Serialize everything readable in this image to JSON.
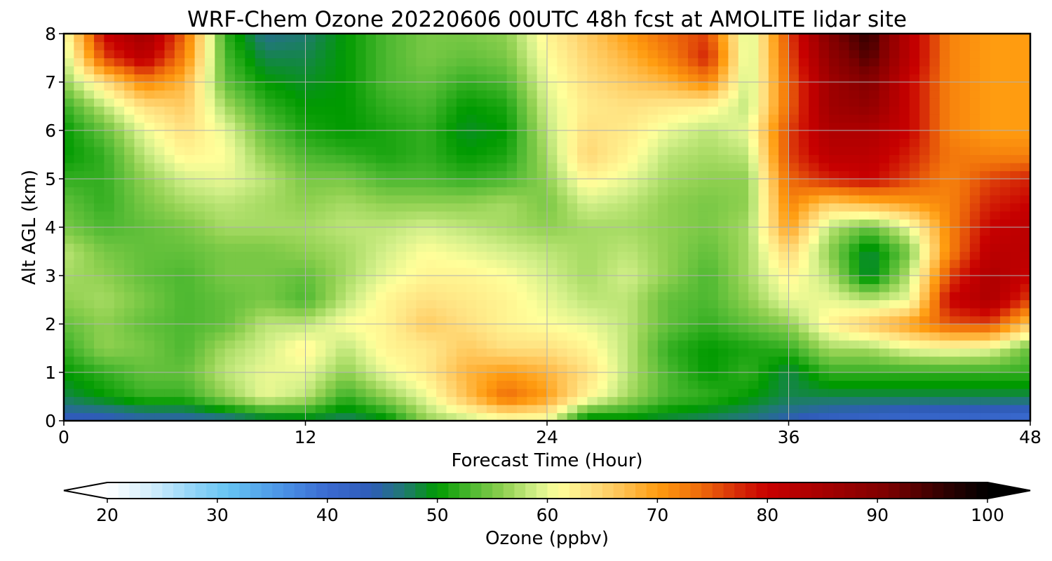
{
  "chart_data": {
    "type": "heatmap",
    "title": "WRF-Chem Ozone  20220606 00UTC 48h fcst at AMOLITE lidar site",
    "xlabel": "Forecast Time (Hour)",
    "ylabel": "Alt AGL (km)",
    "xlim": [
      0,
      48
    ],
    "ylim": [
      0,
      8
    ],
    "x_ticks": [
      "0",
      "12",
      "24",
      "36",
      "48"
    ],
    "y_ticks": [
      "0",
      "1",
      "2",
      "3",
      "4",
      "5",
      "6",
      "7",
      "8"
    ],
    "grid": true,
    "x_hours": [
      0,
      2,
      4,
      6,
      8,
      10,
      12,
      14,
      16,
      18,
      20,
      22,
      24,
      26,
      28,
      30,
      32,
      34,
      36,
      38,
      40,
      42,
      44,
      46,
      48
    ],
    "y_km": [
      0,
      0.5,
      1,
      1.5,
      2,
      2.5,
      3,
      3.5,
      4,
      4.5,
      5,
      5.5,
      6,
      6.5,
      7,
      7.5,
      8
    ],
    "ozone_ppbv": [
      [
        43,
        43,
        44,
        44,
        45,
        47,
        48,
        47,
        49,
        56,
        58,
        60,
        60,
        48,
        49,
        48,
        47,
        46,
        44,
        42,
        41,
        40,
        40,
        40,
        39
      ],
      [
        48,
        50,
        52,
        52,
        56,
        60,
        58,
        52,
        56,
        60,
        67,
        74,
        70,
        62,
        57,
        53,
        52,
        50,
        48,
        48,
        48,
        48,
        48,
        48,
        48
      ],
      [
        50,
        52,
        54,
        54,
        58,
        60,
        60,
        56,
        60,
        63,
        68,
        70,
        68,
        64,
        58,
        53,
        50,
        52,
        48,
        52,
        52,
        52,
        52,
        52,
        52
      ],
      [
        52,
        56,
        55,
        53,
        57,
        59,
        62,
        58,
        62,
        63,
        66,
        64,
        64,
        62,
        58,
        52,
        50,
        51,
        52,
        57,
        57,
        60,
        61,
        60,
        54
      ],
      [
        54,
        56,
        54,
        53,
        54,
        58,
        58,
        61,
        62,
        66,
        64,
        62,
        61,
        60,
        58,
        54,
        52,
        54,
        56,
        62,
        66,
        70,
        75,
        76,
        66
      ],
      [
        56,
        57,
        55,
        53,
        54,
        55,
        53,
        58,
        62,
        64,
        63,
        62,
        60,
        58,
        58,
        54,
        53,
        56,
        60,
        60,
        58,
        60,
        80,
        84,
        76
      ],
      [
        57,
        56,
        54,
        53,
        55,
        55,
        54,
        57,
        60,
        62,
        62,
        61,
        59,
        57,
        59,
        56,
        53,
        57,
        62,
        58,
        48,
        58,
        76,
        84,
        80
      ],
      [
        58,
        55,
        54,
        54,
        55,
        55,
        56,
        57,
        59,
        61,
        60,
        59,
        58,
        57,
        58,
        56,
        54,
        57,
        65,
        56,
        48,
        55,
        72,
        82,
        82
      ],
      [
        55,
        53,
        54,
        55,
        57,
        57,
        57,
        58,
        58,
        59,
        58,
        57,
        56,
        57,
        57,
        56,
        55,
        57,
        70,
        58,
        54,
        60,
        72,
        80,
        82
      ],
      [
        54,
        52,
        55,
        57,
        58,
        57,
        56,
        57,
        56,
        56,
        56,
        57,
        55,
        59,
        58,
        56,
        55,
        56,
        72,
        66,
        68,
        70,
        72,
        78,
        80
      ],
      [
        52,
        52,
        56,
        59,
        60,
        58,
        55,
        55,
        53,
        53,
        52,
        53,
        56,
        62,
        60,
        57,
        56,
        56,
        74,
        78,
        80,
        76,
        72,
        76,
        78
      ],
      [
        50,
        52,
        58,
        62,
        61,
        56,
        53,
        52,
        51,
        52,
        50,
        51,
        57,
        65,
        62,
        58,
        57,
        58,
        76,
        82,
        82,
        78,
        73,
        72,
        72
      ],
      [
        50,
        54,
        60,
        64,
        60,
        54,
        51,
        50,
        51,
        52,
        49,
        50,
        58,
        64,
        63,
        60,
        58,
        60,
        76,
        84,
        84,
        80,
        72,
        70,
        70
      ],
      [
        52,
        58,
        64,
        66,
        57,
        52,
        50,
        50,
        52,
        53,
        50,
        51,
        59,
        63,
        64,
        63,
        62,
        58,
        74,
        86,
        88,
        80,
        72,
        70,
        70
      ],
      [
        56,
        64,
        72,
        68,
        54,
        50,
        49,
        50,
        53,
        54,
        52,
        53,
        60,
        64,
        66,
        68,
        72,
        58,
        74,
        86,
        90,
        80,
        72,
        70,
        70
      ],
      [
        58,
        76,
        82,
        72,
        53,
        48,
        48,
        50,
        53,
        55,
        54,
        55,
        61,
        65,
        68,
        72,
        78,
        58,
        75,
        88,
        94,
        82,
        72,
        70,
        70
      ],
      [
        60,
        80,
        86,
        74,
        52,
        46,
        47,
        50,
        53,
        55,
        55,
        56,
        62,
        66,
        70,
        74,
        76,
        58,
        76,
        90,
        96,
        82,
        72,
        70,
        70
      ]
    ],
    "colorbar": {
      "label": "Ozone  (ppbv)",
      "min": 20,
      "max": 100,
      "ticks": [
        "20",
        "30",
        "40",
        "50",
        "60",
        "70",
        "80",
        "90",
        "100"
      ],
      "extend": "both",
      "color_stops": [
        {
          "v": 20,
          "c": "#ffffff"
        },
        {
          "v": 24,
          "c": "#d2eefc"
        },
        {
          "v": 28,
          "c": "#8fd4f8"
        },
        {
          "v": 31,
          "c": "#66c4f2"
        },
        {
          "v": 36,
          "c": "#4a92e6"
        },
        {
          "v": 40,
          "c": "#3a6ad0"
        },
        {
          "v": 44,
          "c": "#2f5cb8"
        },
        {
          "v": 47,
          "c": "#1f7a70"
        },
        {
          "v": 50,
          "c": "#009a00"
        },
        {
          "v": 53,
          "c": "#4cb830"
        },
        {
          "v": 56,
          "c": "#8fd050"
        },
        {
          "v": 59,
          "c": "#d4f08a"
        },
        {
          "v": 61,
          "c": "#ffff9a"
        },
        {
          "v": 64,
          "c": "#ffe080"
        },
        {
          "v": 67,
          "c": "#ffc050"
        },
        {
          "v": 70,
          "c": "#ff9c10"
        },
        {
          "v": 74,
          "c": "#ee6a0a"
        },
        {
          "v": 77,
          "c": "#d83008"
        },
        {
          "v": 80,
          "c": "#c80000"
        },
        {
          "v": 86,
          "c": "#a00000"
        },
        {
          "v": 91,
          "c": "#7c0000"
        },
        {
          "v": 96,
          "c": "#300000"
        },
        {
          "v": 100,
          "c": "#000000"
        }
      ]
    }
  }
}
